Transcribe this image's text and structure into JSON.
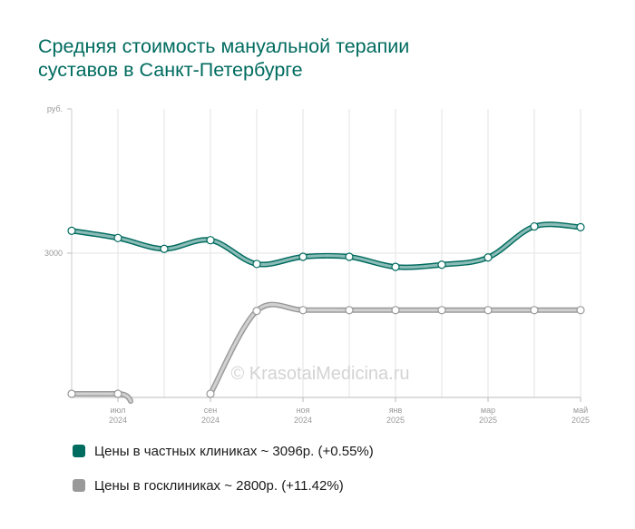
{
  "chart_data": {
    "type": "line",
    "title": [
      "Средняя стоимость мануальной терапии",
      "суставов в Санкт-Петербурге"
    ],
    "y_unit": "руб.",
    "y_ticks": [
      {
        "value": 3000,
        "label": "3000"
      }
    ],
    "ylim": [
      2000,
      4000
    ],
    "x": [
      "2024-06",
      "2024-07",
      "2024-08",
      "2024-09",
      "2024-10",
      "2024-11",
      "2024-12",
      "2025-01",
      "2025-02",
      "2025-03",
      "2025-04",
      "2025-05"
    ],
    "x_tick_labels": [
      {
        "index": 1,
        "month": "июл",
        "year": "2024"
      },
      {
        "index": 3,
        "month": "сен",
        "year": "2024"
      },
      {
        "index": 5,
        "month": "ноя",
        "year": "2024"
      },
      {
        "index": 7,
        "month": "янв",
        "year": "2025"
      },
      {
        "index": 9,
        "month": "мар",
        "year": "2025"
      },
      {
        "index": 11,
        "month": "май",
        "year": "2025"
      }
    ],
    "grid": true,
    "legend_position": "bottom-left",
    "watermark": "© KrasotaiMedicina.ru",
    "series": [
      {
        "name": "Цены в частных клиниках ~ 3096р. (+0.55%)",
        "color": "#006b5f",
        "values": [
          3155,
          3105,
          3030,
          3090,
          2925,
          2975,
          2975,
          2905,
          2920,
          2970,
          3185,
          3180
        ]
      },
      {
        "name": "Цены в госклиниках ~ 2800р. (+11.42%)",
        "color": "#999999",
        "values": [
          2025,
          2025,
          null,
          2025,
          2600,
          2605,
          2605,
          2605,
          2605,
          2605,
          2605,
          2605
        ],
        "segments": [
          [
            0,
            1
          ],
          [
            2,
            11
          ]
        ],
        "gap_dip": true
      }
    ]
  }
}
